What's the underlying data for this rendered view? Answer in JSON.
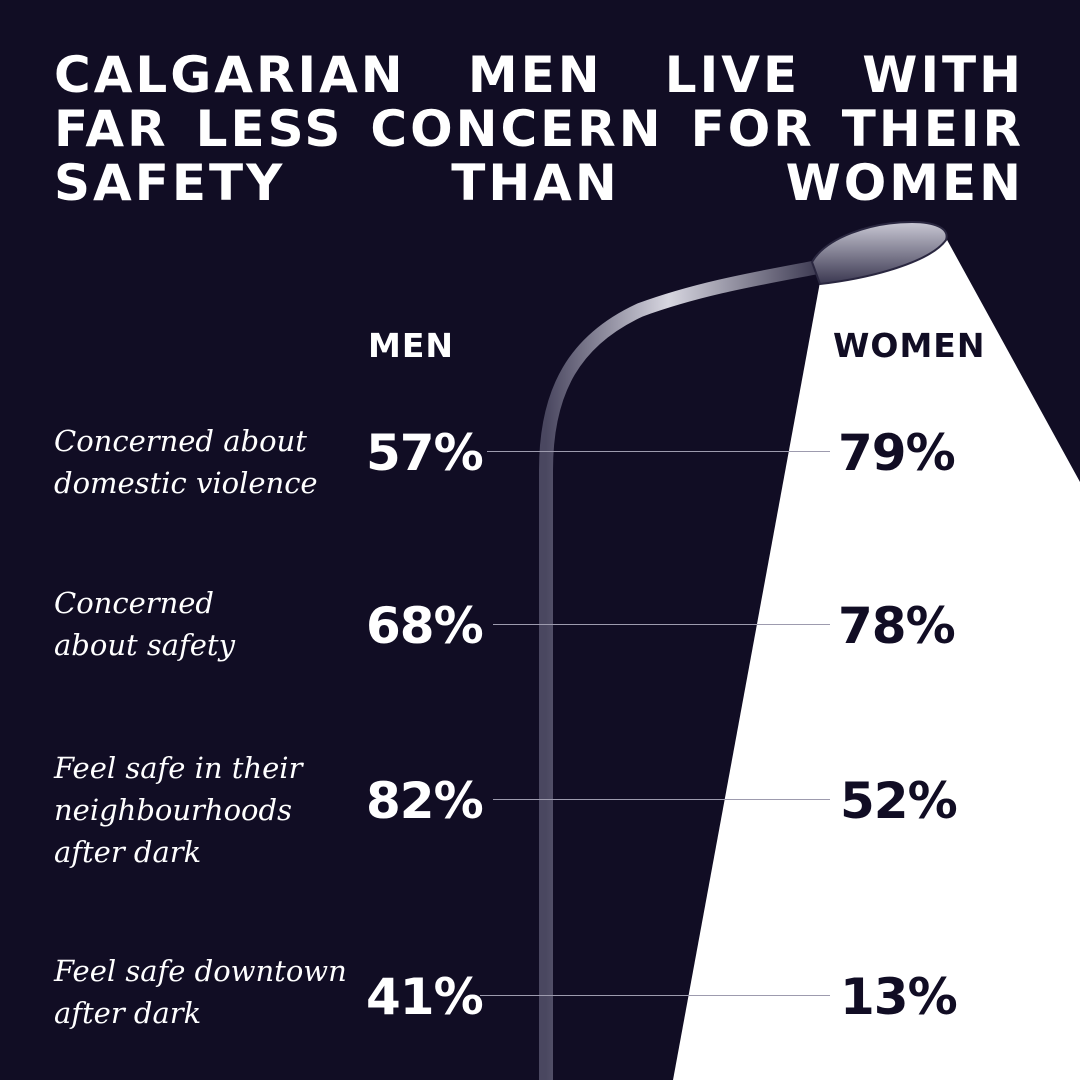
{
  "title": "CALGARIAN MEN LIVE WITH FAR LESS CONCERN FOR THEIR SAFETY THAN WOMEN",
  "colors": {
    "background": "#110d24",
    "light_beam": "#ffffff",
    "text_on_dark": "#ffffff",
    "text_on_light": "#110d24",
    "connector": "#9d9bae"
  },
  "chart_data": {
    "type": "table",
    "series_labels": {
      "men": "MEN",
      "women": "WOMEN"
    },
    "rows": [
      {
        "label": "Concerned about domestic violence",
        "men": "57%",
        "women": "79%"
      },
      {
        "label": "Concerned about safety",
        "men": "68%",
        "women": "78%"
      },
      {
        "label": "Feel safe in their neighbourhoods after dark",
        "men": "82%",
        "women": "52%"
      },
      {
        "label": "Feel safe downtown after dark",
        "men": "41%",
        "women": "13%"
      }
    ]
  }
}
